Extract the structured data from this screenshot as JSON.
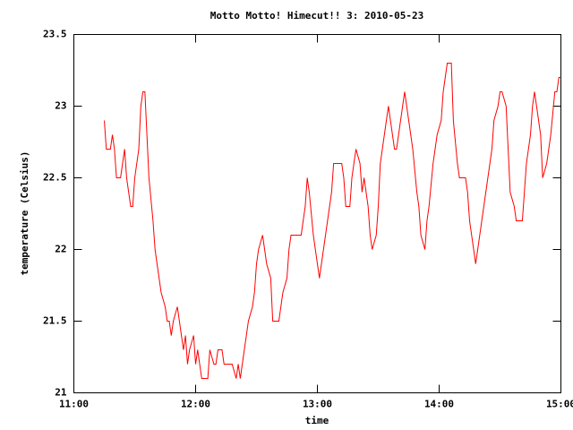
{
  "chart_data": {
    "type": "line",
    "title": "Motto Motto! Himecut!! 3: 2010-05-23",
    "x_label": "time",
    "y_label": "temperature (Celsius)",
    "xlim": [
      "11:00",
      "15:00"
    ],
    "xticks": [
      "11:00",
      "12:00",
      "13:00",
      "14:00",
      "15:00"
    ],
    "ylim": [
      21,
      23.5
    ],
    "yticks": [
      21,
      21.5,
      22,
      22.5,
      23,
      23.5
    ],
    "grid": false,
    "series": [
      {
        "name": "temperature",
        "color": "#ff0000",
        "x": [
          "11:15",
          "11:16",
          "11:18",
          "11:19",
          "11:20",
          "11:21",
          "11:23",
          "11:24",
          "11:25",
          "11:26",
          "11:28",
          "11:29",
          "11:30",
          "11:32",
          "11:33",
          "11:34",
          "11:35",
          "11:36",
          "11:37",
          "11:39",
          "11:40",
          "11:41",
          "11:42",
          "11:43",
          "11:45",
          "11:46",
          "11:47",
          "11:48",
          "11:49",
          "11:51",
          "11:52",
          "11:53",
          "11:54",
          "11:55",
          "11:56",
          "11:57",
          "11:59",
          "12:00",
          "12:01",
          "12:02",
          "12:03",
          "12:06",
          "12:07",
          "12:09",
          "12:10",
          "12:11",
          "12:13",
          "12:14",
          "12:17",
          "12:18",
          "12:20",
          "12:21",
          "12:22",
          "12:24",
          "12:25",
          "12:26",
          "12:28",
          "12:29",
          "12:30",
          "12:31",
          "12:33",
          "12:34",
          "12:35",
          "12:37",
          "12:38",
          "12:39",
          "12:41",
          "12:42",
          "12:43",
          "12:45",
          "12:46",
          "12:47",
          "12:49",
          "12:51",
          "12:52",
          "12:54",
          "12:55",
          "12:56",
          "12:58",
          "12:59",
          "13:01",
          "13:02",
          "13:03",
          "13:05",
          "13:06",
          "13:07",
          "13:08",
          "13:10",
          "13:12",
          "13:13",
          "13:14",
          "13:16",
          "13:17",
          "13:19",
          "13:21",
          "13:22",
          "13:23",
          "13:25",
          "13:26",
          "13:27",
          "13:29",
          "13:30",
          "13:31",
          "13:33",
          "13:34",
          "13:35",
          "13:37",
          "13:38",
          "13:39",
          "13:41",
          "13:42",
          "13:43",
          "13:45",
          "13:46",
          "13:47",
          "13:49",
          "13:50",
          "13:51",
          "13:53",
          "13:54",
          "13:55",
          "13:57",
          "13:58",
          "13:59",
          "14:01",
          "14:02",
          "14:03",
          "14:04",
          "14:06",
          "14:07",
          "14:09",
          "14:10",
          "14:11",
          "14:13",
          "14:14",
          "14:15",
          "14:17",
          "14:18",
          "14:19",
          "14:21",
          "14:22",
          "14:23",
          "14:25",
          "14:26",
          "14:27",
          "14:29",
          "14:30",
          "14:31",
          "14:33",
          "14:34",
          "14:35",
          "14:37",
          "14:38",
          "14:39",
          "14:41",
          "14:42",
          "14:43",
          "14:45",
          "14:46",
          "14:47",
          "14:49",
          "14:50",
          "14:51",
          "14:53",
          "14:54",
          "14:55",
          "14:57",
          "14:58",
          "14:59",
          "15:00"
        ],
        "values": [
          22.9,
          22.7,
          22.7,
          22.8,
          22.7,
          22.5,
          22.5,
          22.6,
          22.7,
          22.5,
          22.3,
          22.3,
          22.5,
          22.7,
          23.0,
          23.1,
          23.1,
          22.8,
          22.5,
          22.2,
          22.0,
          21.9,
          21.8,
          21.7,
          21.6,
          21.5,
          21.5,
          21.4,
          21.5,
          21.6,
          21.5,
          21.4,
          21.3,
          21.4,
          21.2,
          21.3,
          21.4,
          21.2,
          21.3,
          21.2,
          21.1,
          21.1,
          21.3,
          21.2,
          21.2,
          21.3,
          21.3,
          21.2,
          21.2,
          21.2,
          21.1,
          21.2,
          21.1,
          21.3,
          21.4,
          21.5,
          21.6,
          21.7,
          21.9,
          22.0,
          22.1,
          22.0,
          21.9,
          21.8,
          21.5,
          21.5,
          21.5,
          21.6,
          21.7,
          21.8,
          22.0,
          22.1,
          22.1,
          22.1,
          22.1,
          22.3,
          22.5,
          22.4,
          22.1,
          22.0,
          21.8,
          21.9,
          22.0,
          22.2,
          22.3,
          22.4,
          22.6,
          22.6,
          22.6,
          22.5,
          22.3,
          22.3,
          22.5,
          22.7,
          22.6,
          22.4,
          22.5,
          22.3,
          22.1,
          22.0,
          22.1,
          22.3,
          22.6,
          22.8,
          22.9,
          23.0,
          22.8,
          22.7,
          22.7,
          22.9,
          23.0,
          23.1,
          22.9,
          22.8,
          22.7,
          22.4,
          22.3,
          22.1,
          22.0,
          22.2,
          22.3,
          22.6,
          22.7,
          22.8,
          22.9,
          23.1,
          23.2,
          23.3,
          23.3,
          22.9,
          22.6,
          22.5,
          22.5,
          22.5,
          22.4,
          22.2,
          22.0,
          21.9,
          22.0,
          22.2,
          22.3,
          22.4,
          22.6,
          22.7,
          22.9,
          23.0,
          23.1,
          23.1,
          23.0,
          22.7,
          22.4,
          22.3,
          22.2,
          22.2,
          22.2,
          22.4,
          22.6,
          22.8,
          23.0,
          23.1,
          22.9,
          22.8,
          22.5,
          22.6,
          22.7,
          22.8,
          23.1,
          23.1,
          23.2,
          23.2
        ]
      }
    ]
  }
}
